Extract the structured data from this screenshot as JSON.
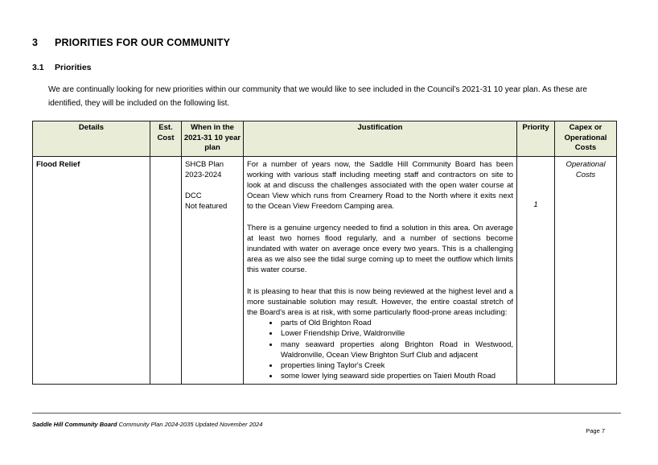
{
  "page": {
    "heading": {
      "number": "3",
      "title": "PRIORITIES FOR OUR COMMUNITY"
    },
    "subheading": {
      "number": "3.1",
      "title": "Priorities"
    },
    "intro": "We are continually looking for new priorities within our community that we would like to see included in the Council’s 2021-31 10 year plan.  As these are identified, they will be included on the following list."
  },
  "table": {
    "header_bg": "#e9edd8",
    "columns": [
      "Details",
      "Est. Cost",
      "When in the 2021-31 10 year plan",
      "Justification",
      "Priority",
      "Capex or Operational Costs"
    ],
    "row": {
      "details": "Flood Relief",
      "est_cost": "",
      "when": {
        "plan_label": "SHCB Plan",
        "plan_years": "2023-2024",
        "dcc_label": "DCC",
        "dcc_status": "Not featured"
      },
      "justification": {
        "paragraphs": [
          "For a number of years now, the Saddle Hill Community Board has been working with various staff including meeting staff and contractors on site to look at and discuss the challenges associated with the open water course at Ocean View which runs from Creamery Road to the North where it exits next to the Ocean View Freedom Camping area.",
          "There is a genuine urgency needed to find a solution in this area.  On average at least two homes flood regularly, and a number of sections become inundated with water on average once every two years.  This is a challenging area as we also see the tidal surge coming up to meet the outflow which limits this water course.",
          "It is pleasing to hear that this is now being reviewed at the highest level and a more sustainable solution may result.  However, the entire coastal stretch of the Board's area is at risk, with some particularly flood-prone areas including:"
        ],
        "bullets": [
          "parts of Old Brighton Road",
          "Lower Friendship Drive, Waldronville",
          "many seaward properties along Brighton Road in Westwood, Waldronville, Ocean View Brighton Surf Club and adjacent",
          "properties lining Taylor's Creek",
          "some lower lying seaward side properties on Taieri Mouth Road"
        ]
      },
      "priority": "1",
      "capex": "Operational Costs"
    }
  },
  "footer": {
    "org": "Saddle Hill Community Board",
    "rest": " Community Plan 2024-2035  Updated November 2024",
    "page_number": "Page 7"
  }
}
